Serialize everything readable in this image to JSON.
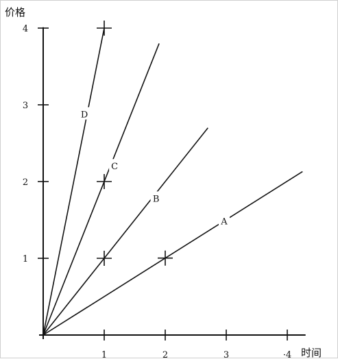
{
  "chart_data": {
    "type": "line",
    "title": "",
    "xlabel": "时间",
    "ylabel": "价格",
    "xlim": [
      0,
      4.3
    ],
    "ylim": [
      0,
      4.1
    ],
    "x_ticks": [
      1,
      2,
      3,
      4
    ],
    "x_tick_labels": [
      "1",
      "2",
      "3",
      "·4"
    ],
    "y_ticks": [
      1,
      2,
      3,
      4
    ],
    "y_tick_labels": [
      "1",
      "2",
      "3",
      "4"
    ],
    "grid": false,
    "legend": "none",
    "series": [
      {
        "name": "D",
        "x": [
          0,
          1.0
        ],
        "y": [
          0,
          4.0
        ],
        "markers_at_x": [
          1
        ]
      },
      {
        "name": "C",
        "x": [
          0,
          1.9
        ],
        "y": [
          0,
          3.8
        ],
        "markers_at_x": [
          1
        ]
      },
      {
        "name": "B",
        "x": [
          0,
          2.7
        ],
        "y": [
          0,
          2.7
        ],
        "markers_at_x": [
          1
        ]
      },
      {
        "name": "A",
        "x": [
          0,
          4.25
        ],
        "y": [
          0,
          2.13
        ],
        "markers_at_x": [
          2
        ]
      }
    ],
    "series_label_text": [
      "D",
      "C",
      "B",
      "A"
    ],
    "colors": {
      "line": "#111111",
      "axis": "#111111",
      "background": "#ffffff"
    }
  }
}
